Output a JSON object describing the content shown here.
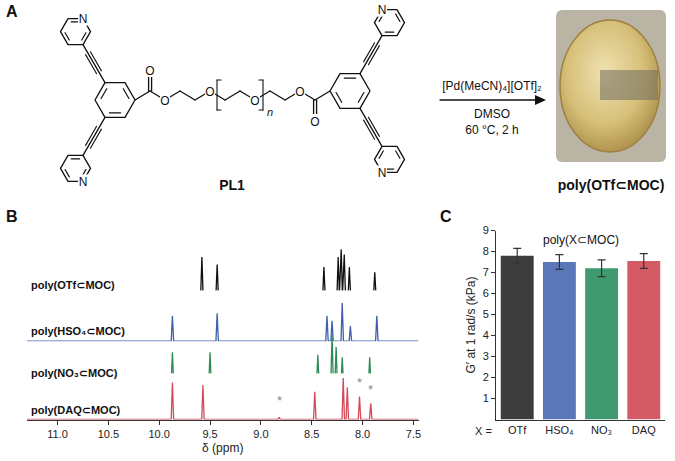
{
  "panel_labels": [
    "A",
    "B",
    "C"
  ],
  "scheme": {
    "ligand": "PL1",
    "reagent": "[Pd(MeCN)₄][OTf]₂",
    "solvent": "DMSO",
    "conditions": "60 °C, 2 h",
    "product": "poly(OTf⊂MOC)",
    "atom_labels": {
      "nitrogen": "N",
      "oxygen": "O",
      "repeat": "n"
    }
  },
  "chart_data": [
    {
      "type": "line",
      "xlabel": "δ (ppm)",
      "xlim": [
        11.3,
        7.45
      ],
      "xticks": [
        {
          "value": 11,
          "label": "11.0"
        },
        10.5,
        {
          "value": 10,
          "label": "10.0"
        },
        9.5,
        {
          "value": 9,
          "label": "9.0"
        },
        8.5,
        {
          "value": 8,
          "label": "8.0"
        },
        7.5
      ],
      "ylim": [
        0,
        1
      ],
      "tick_labels": "x",
      "series": [
        {
          "name": "poly(OTf⊂MOC)",
          "color": "#111111",
          "x": [
            7.45,
            7.868,
            7.88,
            7.892,
            8.118,
            8.13,
            8.142,
            8.168,
            8.18,
            8.192,
            8.198,
            8.21,
            8.222,
            8.228,
            8.24,
            8.252,
            8.368,
            8.38,
            8.392,
            9.418,
            9.43,
            9.442,
            9.568,
            9.58,
            9.592,
            11.3
          ],
          "values": [
            0,
            0,
            0.45,
            0,
            0,
            0.55,
            0,
            0,
            0.8,
            0,
            0,
            0.9,
            0,
            0,
            0.75,
            0,
            0,
            0.55,
            0,
            0,
            0.6,
            0,
            0,
            0.75,
            0,
            0
          ]
        },
        {
          "name": "poly(HSO₄⊂MOC)",
          "color": "#3f5fad",
          "x": [
            7.45,
            7.848,
            7.86,
            7.872,
            8.108,
            8.12,
            8.132,
            8.188,
            8.2,
            8.212,
            8.288,
            8.3,
            8.312,
            8.338,
            8.35,
            8.362,
            9.418,
            9.43,
            9.442,
            9.858,
            9.87,
            9.882,
            11.3
          ],
          "values": [
            0,
            0,
            0.5,
            0,
            0,
            0.3,
            0,
            0,
            0.75,
            0,
            0,
            0.4,
            0,
            0,
            0.5,
            0,
            0,
            0.55,
            0,
            0,
            0.5,
            0,
            0
          ]
        },
        {
          "name": "poly(NO₃⊂MOC)",
          "color": "#2e8b57",
          "x": [
            7.45,
            7.918,
            7.93,
            7.942,
            8.188,
            8.2,
            8.212,
            8.248,
            8.26,
            8.272,
            8.288,
            8.3,
            8.312,
            8.428,
            8.44,
            8.452,
            9.488,
            9.5,
            9.512,
            9.858,
            9.87,
            9.882,
            11.3
          ],
          "values": [
            0,
            0,
            0.5,
            0,
            0,
            0.5,
            0,
            0,
            0.7,
            0,
            0,
            0.95,
            0,
            0,
            0.55,
            0,
            0,
            0.6,
            0,
            0,
            0.6,
            0,
            0
          ]
        },
        {
          "name": "poly(DAQ⊂MOC)",
          "color": "#d04a5a",
          "x": [
            7.45,
            7.908,
            7.92,
            7.932,
            8.018,
            8.03,
            8.042,
            8.138,
            8.15,
            8.162,
            8.178,
            8.19,
            8.202,
            8.458,
            8.47,
            8.482,
            8.808,
            8.82,
            8.832,
            9.558,
            9.57,
            9.582,
            9.858,
            9.87,
            9.882,
            11.3
          ],
          "values": [
            0,
            0,
            0.35,
            0,
            0,
            0.5,
            0,
            0,
            0.7,
            0,
            0,
            0.9,
            0,
            0,
            0.6,
            0,
            0,
            0.05,
            0,
            0,
            0.75,
            0,
            0,
            0.8,
            0,
            0
          ]
        }
      ],
      "annotations": [
        {
          "text": "*",
          "series": "poly(DAQ⊂MOC)",
          "x": 8.82,
          "y": 0.2
        },
        {
          "text": "*",
          "series": "poly(DAQ⊂MOC)",
          "x": 8.03,
          "y": 0.6
        },
        {
          "text": "*",
          "series": "poly(DAQ⊂MOC)",
          "x": 7.92,
          "y": 0.45
        }
      ]
    },
    {
      "type": "bar",
      "title": "poly(X⊂MOC)",
      "xlabel": "X =",
      "ylabel": "G′ at 1 rad/s (kPa)",
      "categories": [
        "OTf",
        "HSO₄",
        "NO₃",
        "DAQ"
      ],
      "values": [
        7.8,
        7.5,
        7.2,
        7.55
      ],
      "errors": [
        0.35,
        0.35,
        0.4,
        0.35
      ],
      "colors": [
        "#3d3d3d",
        "#5a77b8",
        "#3f9a6f",
        "#d45a66"
      ],
      "ylim": [
        0,
        9
      ],
      "yticks": [
        1,
        2,
        3,
        4,
        5,
        6,
        7,
        8,
        9
      ]
    }
  ]
}
